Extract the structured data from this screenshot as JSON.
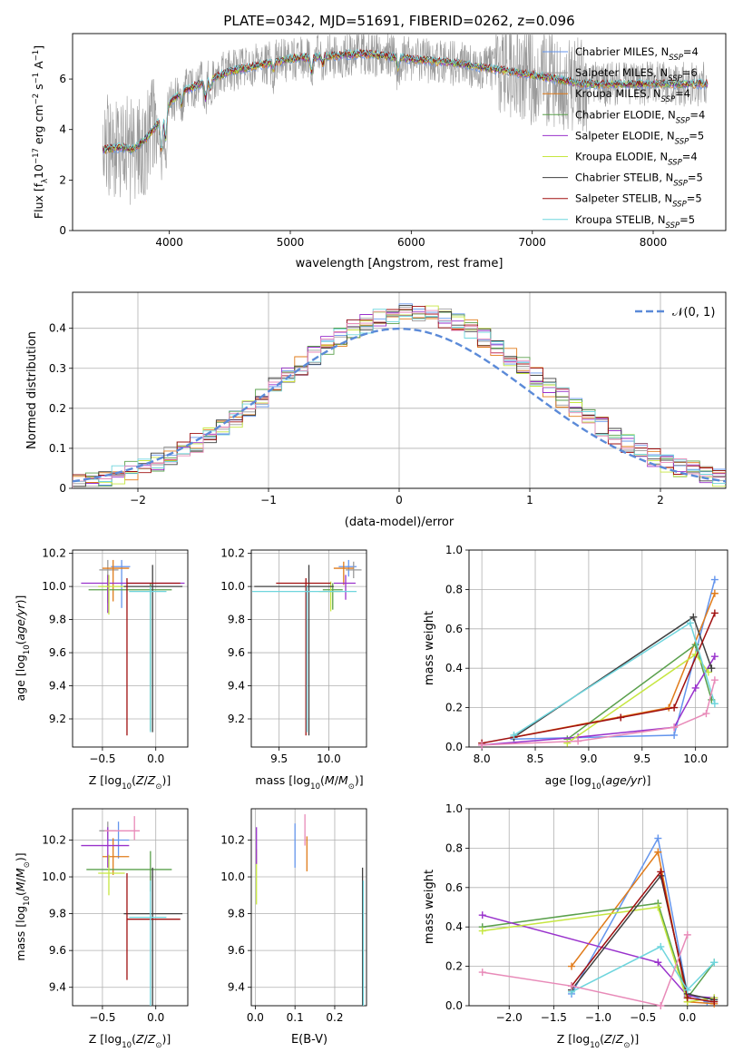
{
  "page_title": "PLATE=0342, MJD=51691, FIBERID=0262, z=0.096",
  "legend_labels": [
    "Chabrier MILES, N_SSP=4",
    "Salpeter MILES, N_SSP=6",
    "Kroupa MILES, N_SSP=4",
    "Chabrier ELODIE, N_SSP=4",
    "Salpeter ELODIE, N_SSP=5",
    "Kroupa ELODIE, N_SSP=4",
    "Chabrier STELIB, N_SSP=5",
    "Salpeter STELIB, N_SSP=5",
    "Kroupa STELIB, N_SSP=5"
  ],
  "colors": {
    "Chabrier MILES": "#6495ed",
    "Salpeter MILES": "#9a9a9a",
    "Kroupa MILES": "#e07b1a",
    "Chabrier ELODIE": "#5aa04c",
    "Salpeter ELODIE": "#9932cc",
    "Kroupa ELODIE": "#c6e640",
    "Chabrier STELIB": "#404040",
    "Salpeter STELIB": "#a01010",
    "Kroupa STELIB": "#6fd5dd",
    "hist_extra_pink": "#e88ab8",
    "gaussian": "#5b8ad8",
    "grid": "#b0b0b0"
  },
  "chart_data": [
    {
      "id": "spectrum",
      "type": "line",
      "title": "PLATE=0342, MJD=51691, FIBERID=0262, z=0.096",
      "xlabel": "wavelength [Angstrom, rest frame]",
      "ylabel": "Flux [f_λ 10^-17 erg cm^-2 s^-1 A^-1]",
      "xlim": [
        3200,
        8600
      ],
      "ylim": [
        0,
        7.8
      ],
      "xticks": [
        4000,
        5000,
        6000,
        7000,
        8000
      ],
      "yticks": [
        0,
        2,
        4,
        6
      ],
      "grid": false,
      "legend": "upper-right",
      "continuum_anchors": {
        "x": [
          3450,
          3600,
          3700,
          3800,
          3900,
          4000,
          4100,
          4300,
          4500,
          4800,
          5000,
          5300,
          5600,
          6000,
          6400,
          6800,
          7200,
          7400
        ],
        "y": [
          3.2,
          3.3,
          3.2,
          3.6,
          4.2,
          5.0,
          5.5,
          5.9,
          6.3,
          6.6,
          6.8,
          6.9,
          7.0,
          6.8,
          6.6,
          6.3,
          6.0,
          5.8
        ]
      },
      "spectral_dips": [
        {
          "x": 3934,
          "depth": 1.4
        },
        {
          "x": 3969,
          "depth": 1.2
        },
        {
          "x": 4102,
          "depth": 0.5
        },
        {
          "x": 4300,
          "depth": 0.7
        },
        {
          "x": 4340,
          "depth": 0.4
        },
        {
          "x": 4861,
          "depth": 0.3
        },
        {
          "x": 5175,
          "depth": 0.6
        },
        {
          "x": 5270,
          "depth": 0.3
        },
        {
          "x": 5890,
          "depth": 0.5
        }
      ]
    },
    {
      "id": "residuals",
      "type": "histogram",
      "xlabel": "(data-model)/error",
      "ylabel": "Normed distribution",
      "xlim": [
        -2.5,
        2.5
      ],
      "ylim": [
        0,
        0.49
      ],
      "xticks": [
        -2,
        -1,
        0,
        1,
        2
      ],
      "yticks": [
        0.0,
        0.1,
        0.2,
        0.3,
        0.4
      ],
      "grid": true,
      "legend": "upper-right",
      "gaussian_label": "𝒩(0, 1)",
      "bin_width": 0.1
    },
    {
      "id": "age_vs_Z",
      "type": "errorbar",
      "xlabel": "Z [log10(Z/Z⊙)]",
      "ylabel": "age [log10(age/yr)]",
      "xlim": [
        -0.78,
        0.3
      ],
      "ylim": [
        9.03,
        10.22
      ],
      "xticks": [
        -0.5,
        0.0
      ],
      "yticks": [
        9.2,
        9.4,
        9.6,
        9.8,
        10.0,
        10.2
      ],
      "grid": true,
      "points": [
        {
          "model": "Chabrier MILES",
          "x": -0.32,
          "xerr": [
            0.1,
            0.08
          ],
          "y": 10.12,
          "yerr": [
            0.25,
            0.04
          ]
        },
        {
          "model": "Salpeter MILES",
          "x": -0.45,
          "xerr": [
            0.08,
            0.1
          ],
          "y": 10.1,
          "yerr": [
            0.2,
            0.06
          ]
        },
        {
          "model": "Kroupa MILES",
          "x": -0.4,
          "xerr": [
            0.1,
            0.15
          ],
          "y": 10.11,
          "yerr": [
            0.2,
            0.05
          ]
        },
        {
          "model": "Chabrier ELODIE",
          "x": -0.05,
          "xerr": [
            0.58,
            0.2
          ],
          "y": 9.98,
          "yerr": [
            0.85,
            0.04
          ]
        },
        {
          "model": "Salpeter ELODIE",
          "x": -0.45,
          "xerr": [
            0.25,
            0.72
          ],
          "y": 10.02,
          "yerr": [
            0.18,
            0.05
          ]
        },
        {
          "model": "Kroupa ELODIE",
          "x": -0.44,
          "xerr": [
            0.1,
            0.15
          ],
          "y": 10.0,
          "yerr": [
            0.17,
            0.07
          ]
        },
        {
          "model": "Chabrier STELIB",
          "x": -0.03,
          "xerr": [
            0.27,
            0.28
          ],
          "y": 10.0,
          "yerr": [
            0.88,
            0.13
          ]
        },
        {
          "model": "Salpeter STELIB",
          "x": -0.27,
          "xerr": [
            0.0,
            0.5
          ],
          "y": 10.02,
          "yerr": [
            0.92,
            0.03
          ]
        },
        {
          "model": "Kroupa STELIB",
          "x": -0.05,
          "xerr": [
            0.2,
            0.15
          ],
          "y": 9.97,
          "yerr": [
            0.85,
            0.03
          ]
        }
      ]
    },
    {
      "id": "age_vs_mass",
      "type": "errorbar",
      "xlabel": "mass [log10(M/M⊙)]",
      "ylabel": "",
      "xlim": [
        9.22,
        10.38
      ],
      "ylim": [
        9.03,
        10.22
      ],
      "xticks": [
        9.5,
        10.0
      ],
      "yticks": [
        9.2,
        9.4,
        9.6,
        9.8,
        10.0,
        10.2
      ],
      "grid": true,
      "points": [
        {
          "model": "Chabrier MILES",
          "x": 10.2,
          "xerr": [
            0.1,
            0.08
          ],
          "y": 10.12,
          "yerr": [
            0.06,
            0.04
          ]
        },
        {
          "model": "Salpeter MILES",
          "x": 10.25,
          "xerr": [
            0.08,
            0.08
          ],
          "y": 10.1,
          "yerr": [
            0.05,
            0.05
          ]
        },
        {
          "model": "Kroupa MILES",
          "x": 10.15,
          "xerr": [
            0.1,
            0.1
          ],
          "y": 10.11,
          "yerr": [
            0.1,
            0.04
          ]
        },
        {
          "model": "Chabrier ELODIE",
          "x": 10.04,
          "xerr": [
            0.1,
            0.1
          ],
          "y": 9.98,
          "yerr": [
            0.12,
            0.04
          ]
        },
        {
          "model": "Salpeter ELODIE",
          "x": 10.17,
          "xerr": [
            0.12,
            0.1
          ],
          "y": 10.02,
          "yerr": [
            0.1,
            0.05
          ]
        },
        {
          "model": "Kroupa ELODIE",
          "x": 10.02,
          "xerr": [
            0.12,
            0.1
          ],
          "y": 9.97,
          "yerr": [
            0.12,
            0.06
          ]
        },
        {
          "model": "Chabrier STELIB",
          "x": 9.8,
          "xerr": [
            0.55,
            0.25
          ],
          "y": 10.0,
          "yerr": [
            0.9,
            0.13
          ]
        },
        {
          "model": "Salpeter STELIB",
          "x": 9.77,
          "xerr": [
            0.3,
            0.25
          ],
          "y": 10.02,
          "yerr": [
            0.92,
            0.03
          ]
        },
        {
          "model": "Kroupa STELIB",
          "x": 9.78,
          "xerr": [
            0.55,
            0.5
          ],
          "y": 9.97,
          "yerr": [
            0.85,
            0.03
          ]
        }
      ]
    },
    {
      "id": "massweight_vs_age",
      "type": "line",
      "xlabel": "age [log10(age/yr)]",
      "ylabel": "mass weight",
      "xlim": [
        7.88,
        10.3
      ],
      "ylim": [
        0,
        1
      ],
      "xticks": [
        8.0,
        8.5,
        9.0,
        9.5,
        10.0
      ],
      "yticks": [
        0.0,
        0.2,
        0.4,
        0.6,
        0.8,
        1.0
      ],
      "grid": true,
      "series": [
        {
          "model": "Chabrier MILES",
          "x": [
            8.3,
            9.8,
            10.18
          ],
          "y": [
            0.04,
            0.06,
            0.85
          ]
        },
        {
          "model": "Kroupa MILES",
          "x": [
            8.3,
            9.75,
            10.18
          ],
          "y": [
            0.05,
            0.2,
            0.78
          ]
        },
        {
          "model": "Chabrier ELODIE",
          "x": [
            8.8,
            10.0,
            10.15
          ],
          "y": [
            0.04,
            0.52,
            0.24
          ]
        },
        {
          "model": "Salpeter ELODIE",
          "x": [
            8.0,
            8.9,
            9.8,
            10.0,
            10.18
          ],
          "y": [
            0.01,
            0.05,
            0.1,
            0.3,
            0.46
          ]
        },
        {
          "model": "Kroupa ELODIE",
          "x": [
            8.8,
            10.0,
            10.12
          ],
          "y": [
            0.02,
            0.47,
            0.38
          ]
        },
        {
          "model": "Chabrier STELIB",
          "x": [
            8.3,
            9.98,
            10.15
          ],
          "y": [
            0.05,
            0.66,
            0.4
          ]
        },
        {
          "model": "Salpeter STELIB",
          "x": [
            8.0,
            9.3,
            9.8,
            10.18
          ],
          "y": [
            0.02,
            0.15,
            0.2,
            0.68
          ]
        },
        {
          "model": "Kroupa STELIB",
          "x": [
            8.3,
            9.95,
            10.18
          ],
          "y": [
            0.06,
            0.63,
            0.22
          ]
        },
        {
          "model": "hist_extra_pink",
          "x": [
            8.0,
            8.9,
            9.8,
            10.1,
            10.18
          ],
          "y": [
            0.01,
            0.03,
            0.1,
            0.17,
            0.34
          ]
        }
      ]
    },
    {
      "id": "mass_vs_Z",
      "type": "errorbar",
      "xlabel": "Z [log10(Z/Z⊙)]",
      "ylabel": "mass [log10(M/M⊙)]",
      "xlim": [
        -0.78,
        0.3
      ],
      "ylim": [
        9.3,
        10.37
      ],
      "xticks": [
        -0.5,
        0.0
      ],
      "yticks": [
        9.4,
        9.6,
        9.8,
        10.0,
        10.2
      ],
      "grid": true,
      "points": [
        {
          "model": "Chabrier MILES",
          "x": -0.35,
          "xerr": [
            0.1,
            0.1
          ],
          "y": 10.2,
          "yerr": [
            0.1,
            0.1
          ]
        },
        {
          "model": "Salpeter MILES",
          "x": -0.45,
          "xerr": [
            0.08,
            0.08
          ],
          "y": 10.25,
          "yerr": [
            0.05,
            0.05
          ]
        },
        {
          "model": "Kroupa MILES",
          "x": -0.4,
          "xerr": [
            0.1,
            0.15
          ],
          "y": 10.11,
          "yerr": [
            0.1,
            0.1
          ]
        },
        {
          "model": "Chabrier ELODIE",
          "x": -0.05,
          "xerr": [
            0.6,
            0.2
          ],
          "y": 10.04,
          "yerr": [
            0.12,
            0.1
          ]
        },
        {
          "model": "Salpeter ELODIE",
          "x": -0.45,
          "xerr": [
            0.25,
            0.2
          ],
          "y": 10.17,
          "yerr": [
            0.12,
            0.1
          ]
        },
        {
          "model": "Kroupa ELODIE",
          "x": -0.44,
          "xerr": [
            0.1,
            0.15
          ],
          "y": 10.02,
          "yerr": [
            0.12,
            0.1
          ]
        },
        {
          "model": "Chabrier STELIB",
          "x": -0.03,
          "xerr": [
            0.27,
            0.28
          ],
          "y": 9.8,
          "yerr": [
            0.55,
            0.25
          ]
        },
        {
          "model": "Salpeter STELIB",
          "x": -0.27,
          "xerr": [
            0.0,
            0.5
          ],
          "y": 9.77,
          "yerr": [
            0.33,
            0.25
          ]
        },
        {
          "model": "Kroupa STELIB",
          "x": -0.05,
          "xerr": [
            0.2,
            0.15
          ],
          "y": 9.78,
          "yerr": [
            0.5,
            0.2
          ]
        },
        {
          "model": "hist_extra_pink",
          "x": -0.2,
          "xerr": [
            0.28,
            0.05
          ],
          "y": 10.25,
          "yerr": [
            0.05,
            0.08
          ]
        }
      ]
    },
    {
      "id": "mass_vs_ebv",
      "type": "errorbar",
      "xlabel": "E(B-V)",
      "ylabel": "",
      "xlim": [
        -0.01,
        0.28
      ],
      "ylim": [
        9.3,
        10.37
      ],
      "xticks": [
        0.0,
        0.1,
        0.2
      ],
      "yticks": [
        9.4,
        9.6,
        9.8,
        10.0,
        10.2
      ],
      "grid": true,
      "points": [
        {
          "model": "Chabrier MILES",
          "x": 0.1,
          "xerr": [
            0,
            0
          ],
          "y": 10.17,
          "yerr": [
            0.12,
            0.12
          ]
        },
        {
          "model": "Kroupa MILES",
          "x": 0.13,
          "xerr": [
            0,
            0
          ],
          "y": 10.12,
          "yerr": [
            0.09,
            0.1
          ]
        },
        {
          "model": "Kroupa ELODIE",
          "x": 0.003,
          "xerr": [
            0,
            0
          ],
          "y": 10.0,
          "yerr": [
            0.15,
            0.15
          ]
        },
        {
          "model": "Salpeter ELODIE",
          "x": 0.003,
          "xerr": [
            0,
            0
          ],
          "y": 10.17,
          "yerr": [
            0.1,
            0.1
          ]
        },
        {
          "model": "hist_extra_pink",
          "x": 0.125,
          "xerr": [
            0,
            0
          ],
          "y": 10.22,
          "yerr": [
            0.05,
            0.12
          ]
        },
        {
          "model": "Chabrier STELIB",
          "x": 0.27,
          "xerr": [
            0,
            0
          ],
          "y": 9.8,
          "yerr": [
            0.5,
            0.25
          ]
        },
        {
          "model": "Kroupa STELIB",
          "x": 0.272,
          "xerr": [
            0,
            0
          ],
          "y": 9.78,
          "yerr": [
            0.5,
            0.2
          ]
        }
      ]
    },
    {
      "id": "massweight_vs_Z",
      "type": "line",
      "xlabel": "Z [log10(Z/Z⊙)]",
      "ylabel": "mass weight",
      "xlim": [
        -2.45,
        0.45
      ],
      "ylim": [
        0,
        1
      ],
      "xticks": [
        -2.0,
        -1.5,
        -1.0,
        -0.5,
        0.0
      ],
      "yticks": [
        0.0,
        0.2,
        0.4,
        0.6,
        0.8,
        1.0
      ],
      "grid": true,
      "series": [
        {
          "model": "Chabrier MILES",
          "x": [
            -1.3,
            -0.33,
            0.0,
            0.22
          ],
          "y": [
            0.06,
            0.85,
            0.06,
            0.02
          ]
        },
        {
          "model": "Kroupa MILES",
          "x": [
            -1.3,
            -0.33,
            0.0,
            0.3
          ],
          "y": [
            0.2,
            0.78,
            0.02,
            0.01
          ]
        },
        {
          "model": "Chabrier ELODIE",
          "x": [
            -2.3,
            -0.33,
            0.0,
            0.3
          ],
          "y": [
            0.4,
            0.52,
            0.04,
            0.22
          ]
        },
        {
          "model": "Salpeter ELODIE",
          "x": [
            -2.3,
            -0.33,
            0.0,
            0.3
          ],
          "y": [
            0.46,
            0.22,
            0.05,
            0.04
          ]
        },
        {
          "model": "Kroupa ELODIE",
          "x": [
            -2.3,
            -0.33,
            0.0,
            0.3
          ],
          "y": [
            0.38,
            0.5,
            0.02,
            0.04
          ]
        },
        {
          "model": "Chabrier STELIB",
          "x": [
            -1.3,
            -0.3,
            0.0,
            0.3
          ],
          "y": [
            0.08,
            0.66,
            0.06,
            0.03
          ]
        },
        {
          "model": "Salpeter STELIB",
          "x": [
            -1.3,
            -0.3,
            0.0,
            0.3
          ],
          "y": [
            0.1,
            0.68,
            0.04,
            0.02
          ]
        },
        {
          "model": "Kroupa STELIB",
          "x": [
            -1.3,
            -0.3,
            0.0,
            0.3
          ],
          "y": [
            0.07,
            0.3,
            0.08,
            0.22
          ]
        },
        {
          "model": "hist_extra_pink",
          "x": [
            -2.3,
            -1.3,
            -0.3,
            0.0
          ],
          "y": [
            0.17,
            0.1,
            0.0,
            0.36
          ]
        }
      ]
    }
  ]
}
